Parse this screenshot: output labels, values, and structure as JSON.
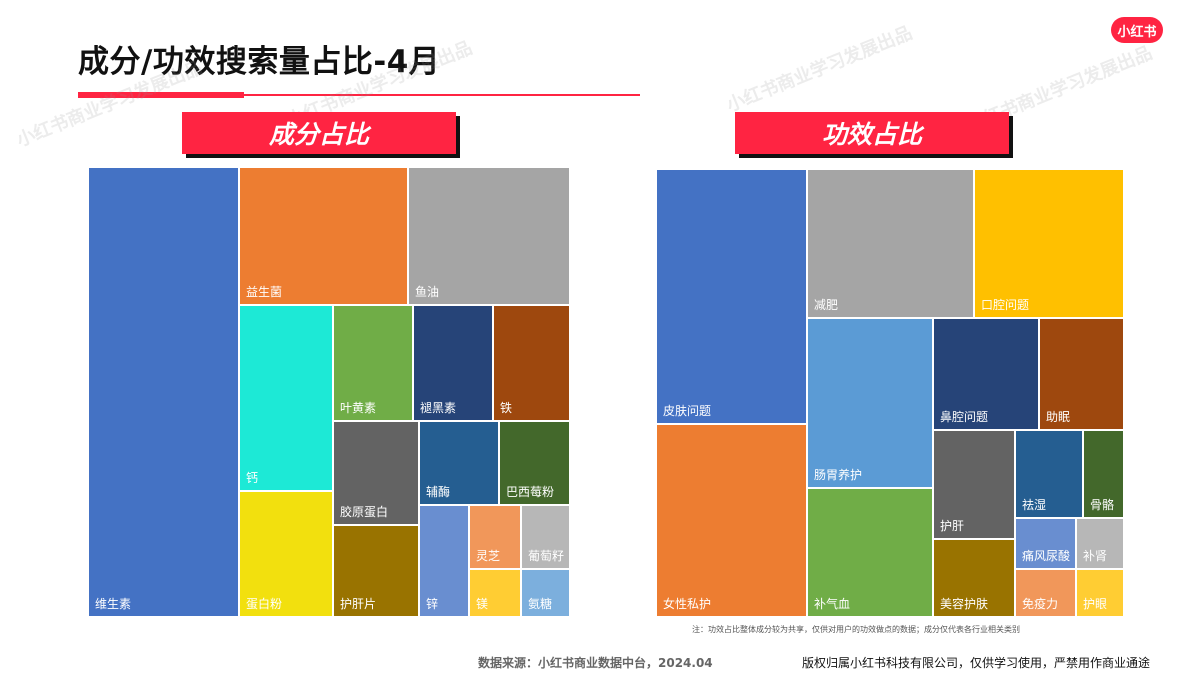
{
  "page": {
    "title": "成分/功效搜索量占比-4月",
    "logo": "小红书",
    "watermark": "小红书商业学习发展出品",
    "note": "注：功效占比整体成分较为共享，仅供对用户的功效做点的数据；成分仅代表各行业相关类别",
    "source": "数据来源：小红书商业数据中台，2024.04",
    "copyright": "版权归属小红书科技有限公司，仅供学习使用，严禁用作商业通途"
  },
  "chart_data": [
    {
      "type": "treemap",
      "title": "成分占比",
      "items": [
        {
          "label": "维生素",
          "color": "#4472c4"
        },
        {
          "label": "益生菌",
          "color": "#ed7d31"
        },
        {
          "label": "鱼油",
          "color": "#a5a5a5"
        },
        {
          "label": "钙",
          "color": "#1de9d6"
        },
        {
          "label": "叶黄素",
          "color": "#70ad47"
        },
        {
          "label": "褪黑素",
          "color": "#264478"
        },
        {
          "label": "铁",
          "color": "#9e480e"
        },
        {
          "label": "胶原蛋白",
          "color": "#636363"
        },
        {
          "label": "辅酶",
          "color": "#255e91"
        },
        {
          "label": "巴西莓粉",
          "color": "#43682b"
        },
        {
          "label": "蛋白粉",
          "color": "#f2e00e"
        },
        {
          "label": "护肝片",
          "color": "#997300"
        },
        {
          "label": "锌",
          "color": "#698ed0"
        },
        {
          "label": "灵芝",
          "color": "#f1975a"
        },
        {
          "label": "葡萄籽",
          "color": "#b7b7b7"
        },
        {
          "label": "镁",
          "color": "#ffcd33"
        },
        {
          "label": "氨糖",
          "color": "#7cafdd"
        }
      ]
    },
    {
      "type": "treemap",
      "title": "功效占比",
      "items": [
        {
          "label": "皮肤问题",
          "color": "#4472c4"
        },
        {
          "label": "减肥",
          "color": "#a5a5a5"
        },
        {
          "label": "口腔问题",
          "color": "#ffc000"
        },
        {
          "label": "女性私护",
          "color": "#ed7d31"
        },
        {
          "label": "肠胃养护",
          "color": "#5b9bd5"
        },
        {
          "label": "鼻腔问题",
          "color": "#264478"
        },
        {
          "label": "助眠",
          "color": "#9e480e"
        },
        {
          "label": "护肝",
          "color": "#636363"
        },
        {
          "label": "祛湿",
          "color": "#255e91"
        },
        {
          "label": "骨骼",
          "color": "#43682b"
        },
        {
          "label": "补气血",
          "color": "#70ad47"
        },
        {
          "label": "美容护肤",
          "color": "#997300"
        },
        {
          "label": "痛风尿酸",
          "color": "#698ed0"
        },
        {
          "label": "补肾",
          "color": "#b7b7b7"
        },
        {
          "label": "免疫力",
          "color": "#f1975a"
        },
        {
          "label": "护眼",
          "color": "#ffcd33"
        }
      ]
    }
  ]
}
